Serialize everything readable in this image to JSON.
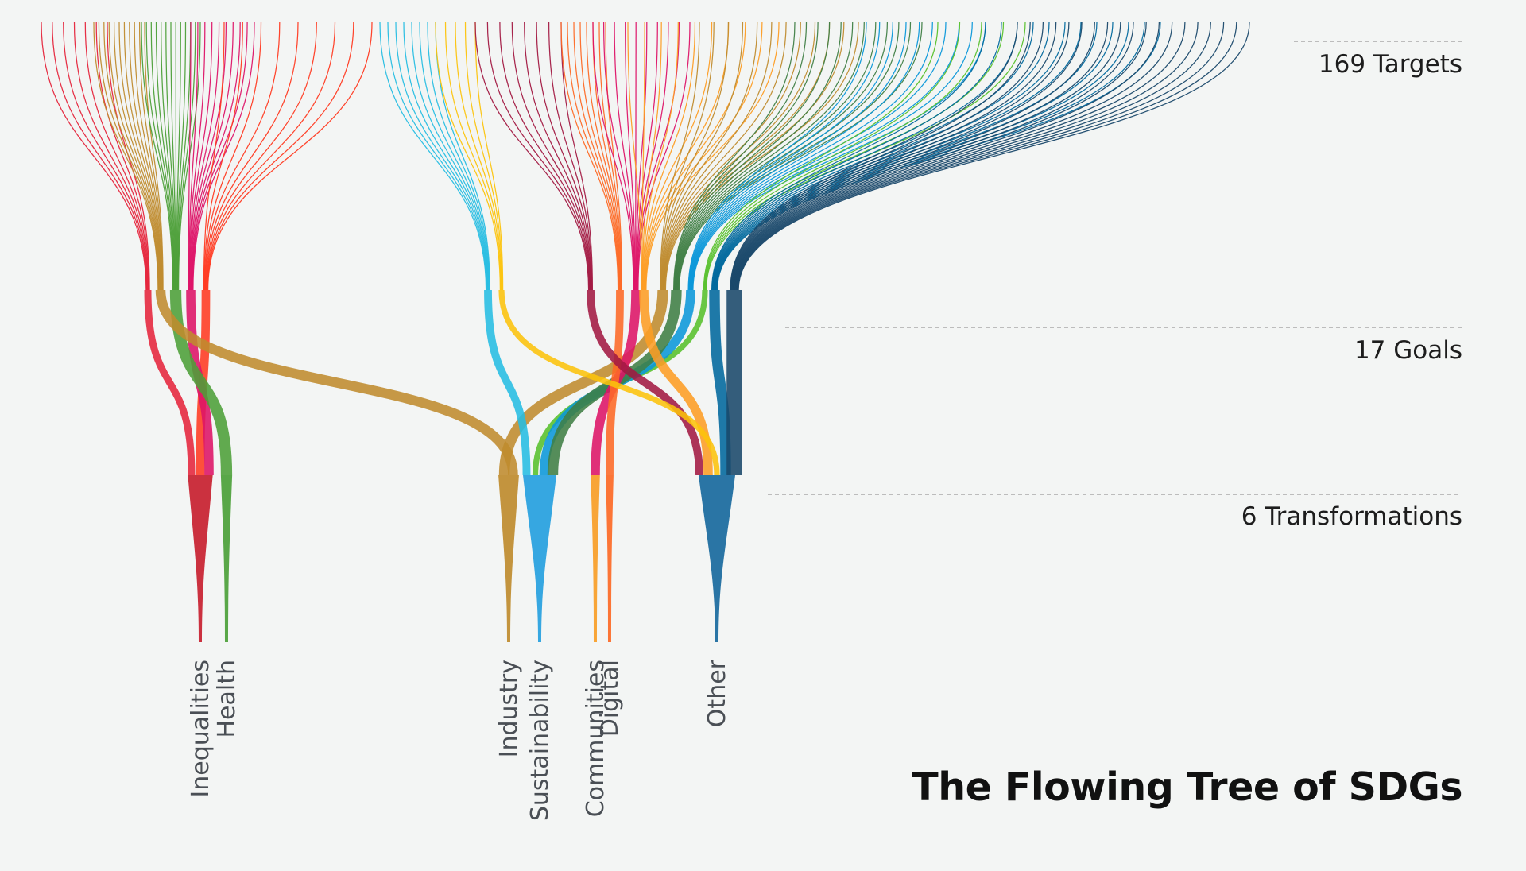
{
  "title": "The Flowing Tree of SDGs",
  "levels": {
    "targets": "169 Targets",
    "goals": "17 Goals",
    "transformations": "6 Transformations"
  },
  "transformations": [
    {
      "label": "Inequalities",
      "color": "#c8202f",
      "goals": [
        "1",
        "5",
        "10"
      ]
    },
    {
      "label": "Health",
      "color": "#4c9f38",
      "goals": [
        "3"
      ]
    },
    {
      "label": "Industry",
      "color": "#bf8b2e",
      "goals": [
        "8",
        "12"
      ]
    },
    {
      "label": "Sustainability",
      "color": "#26a0de",
      "goals": [
        "6",
        "13",
        "14",
        "15"
      ]
    },
    {
      "label": "Communities",
      "color": "#f99d26",
      "goals": [
        "11"
      ]
    },
    {
      "label": "Digital",
      "color": "#fd6925",
      "goals": [
        "9"
      ]
    },
    {
      "label": "Other",
      "color": "#19699d",
      "goals": [
        "2",
        "4",
        "7",
        "16",
        "17"
      ]
    }
  ],
  "goals": [
    {
      "id": "1",
      "color": "#e5243b",
      "targets": 7
    },
    {
      "id": "12",
      "color": "#bf8b2e",
      "targets": 11
    },
    {
      "id": "3",
      "color": "#4c9f38",
      "targets": 13
    },
    {
      "id": "10",
      "color": "#dd1367",
      "targets": 10
    },
    {
      "id": "5",
      "color": "#ff3a21",
      "targets": 9
    },
    {
      "id": "6",
      "color": "#26bde2",
      "targets": 8
    },
    {
      "id": "7",
      "color": "#fcc30b",
      "targets": 5
    },
    {
      "id": "2",
      "color": "#a21942",
      "targets": 8
    },
    {
      "id": "9",
      "color": "#fd6925",
      "targets": 8
    },
    {
      "id": "11",
      "color": "#dd1367",
      "targets": 10
    },
    {
      "id": "4",
      "color": "#fd9d24",
      "targets": 10
    },
    {
      "id": "8",
      "color": "#bf8b2e",
      "targets": 12
    },
    {
      "id": "15",
      "color": "#3f7e44",
      "targets": 12
    },
    {
      "id": "14",
      "color": "#0a97d9",
      "targets": 10
    },
    {
      "id": "13",
      "color": "#56c02b",
      "targets": 5
    },
    {
      "id": "16",
      "color": "#00689d",
      "targets": 12
    },
    {
      "id": "17",
      "color": "#19486a",
      "targets": 19
    }
  ]
}
